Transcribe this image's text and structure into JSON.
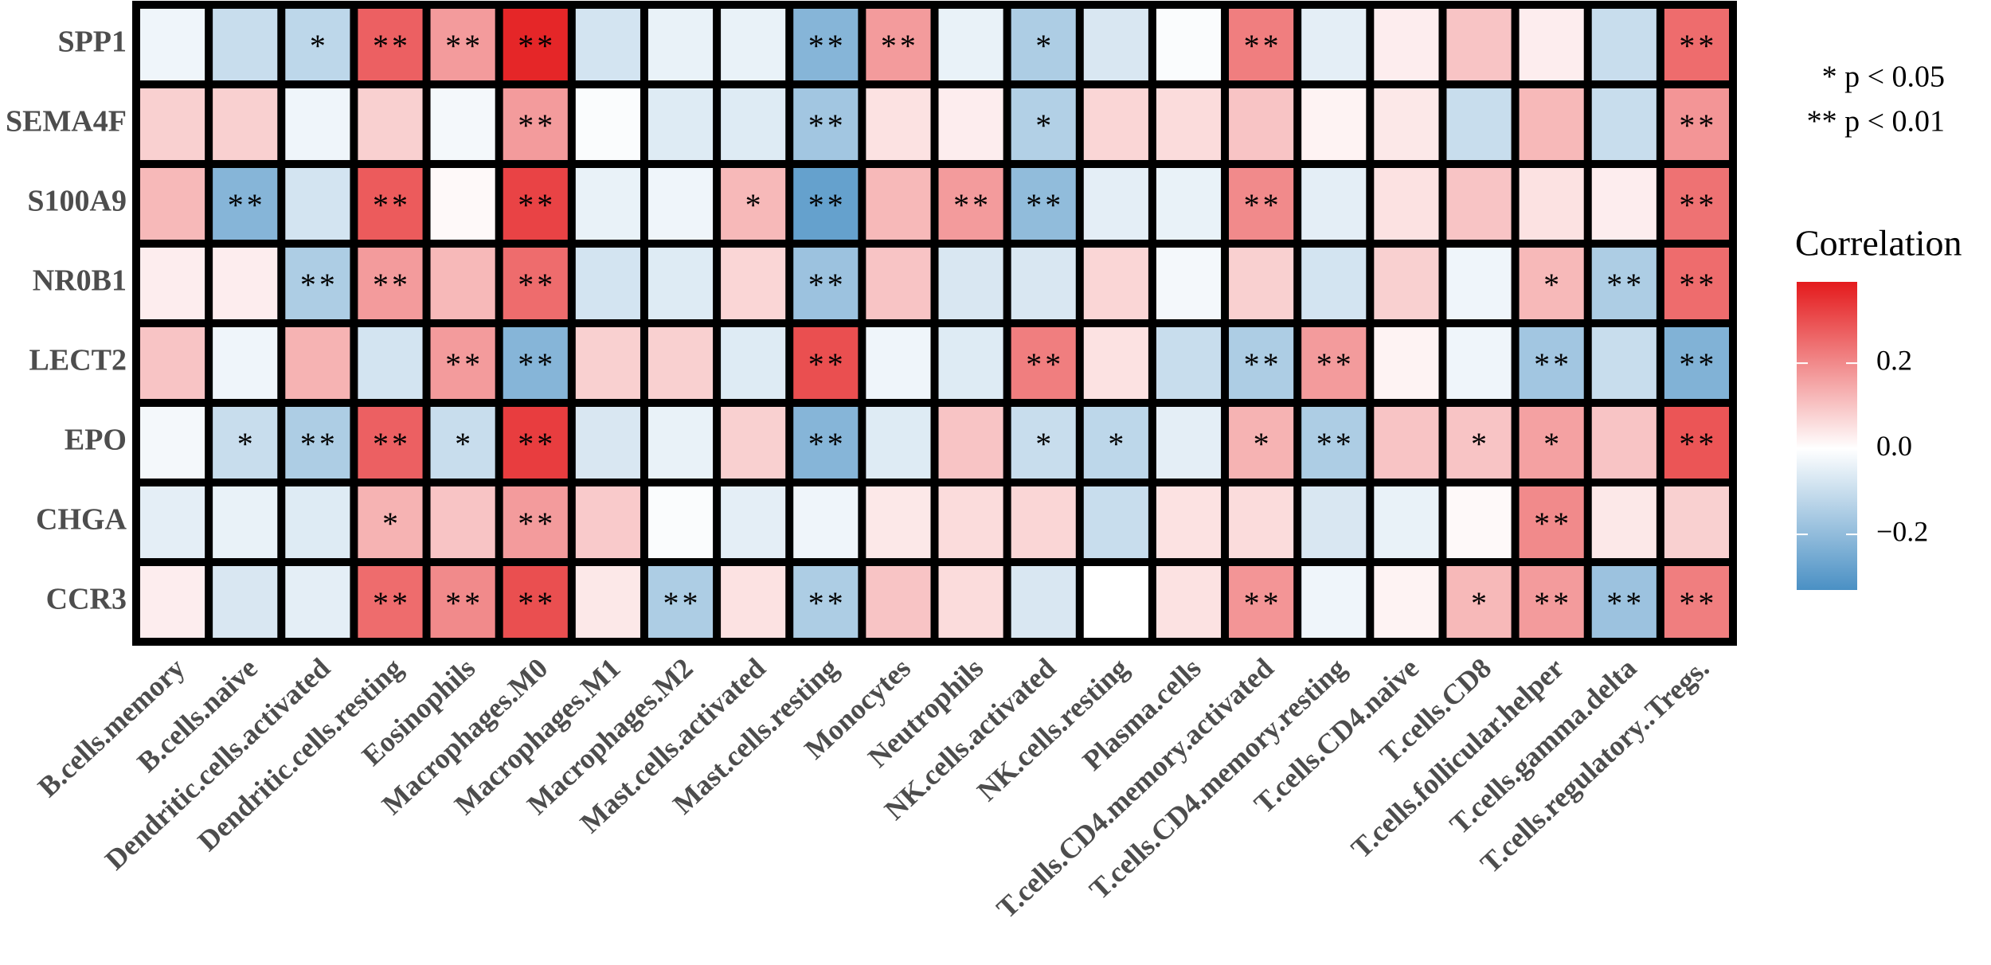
{
  "chart_data": {
    "type": "heatmap",
    "rows": [
      "SPP1",
      "SEMA4F",
      "S100A9",
      "NR0B1",
      "LECT2",
      "EPO",
      "CHGA",
      "CCR3"
    ],
    "columns": [
      "B.cells.memory",
      "B.cells.naive",
      "Dendritic.cells.activated",
      "Dendritic.cells.resting",
      "Eosinophils",
      "Macrophages.M0",
      "Macrophages.M1",
      "Macrophages.M2",
      "Mast.cells.activated",
      "Mast.cells.resting",
      "Monocytes",
      "Neutrophils",
      "NK.cells.activated",
      "NK.cells.resting",
      "Plasma.cells",
      "T.cells.CD4.memory.activated",
      "T.cells.CD4.memory.resting",
      "T.cells.CD4.naive",
      "T.cells.CD8",
      "T.cells.follicular.helper",
      "T.cells.gamma.delta",
      "T.cells.regulatory..Tregs."
    ],
    "values": [
      [
        -0.03,
        -0.1,
        -0.12,
        0.27,
        0.17,
        0.37,
        -0.08,
        -0.04,
        -0.04,
        -0.22,
        0.17,
        -0.04,
        -0.15,
        -0.07,
        -0.01,
        0.22,
        -0.05,
        0.03,
        0.1,
        0.03,
        -0.1,
        0.25
      ],
      [
        0.08,
        0.08,
        -0.03,
        0.08,
        -0.02,
        0.17,
        -0.01,
        -0.06,
        -0.06,
        -0.17,
        0.05,
        0.03,
        -0.14,
        0.07,
        0.06,
        0.1,
        0.02,
        0.04,
        -0.1,
        0.12,
        -0.1,
        0.18
      ],
      [
        0.12,
        -0.22,
        -0.08,
        0.28,
        0.01,
        0.32,
        -0.04,
        -0.03,
        0.12,
        -0.28,
        0.12,
        0.17,
        -0.2,
        -0.05,
        -0.04,
        0.2,
        -0.05,
        0.05,
        0.1,
        0.05,
        0.03,
        0.24
      ],
      [
        0.03,
        0.03,
        -0.15,
        0.17,
        0.12,
        0.25,
        -0.08,
        -0.06,
        0.07,
        -0.18,
        0.1,
        -0.07,
        -0.07,
        0.07,
        -0.02,
        0.08,
        -0.08,
        0.08,
        -0.03,
        0.12,
        -0.15,
        0.25
      ],
      [
        0.1,
        -0.03,
        0.13,
        -0.08,
        0.17,
        -0.22,
        0.08,
        0.08,
        -0.06,
        0.3,
        -0.03,
        -0.06,
        0.22,
        0.05,
        -0.1,
        -0.15,
        0.17,
        0.02,
        -0.03,
        -0.17,
        -0.1,
        -0.23
      ],
      [
        -0.02,
        -0.1,
        -0.15,
        0.27,
        -0.1,
        0.33,
        -0.07,
        -0.04,
        0.08,
        -0.22,
        -0.06,
        0.1,
        -0.1,
        -0.12,
        -0.05,
        0.13,
        -0.15,
        0.1,
        0.1,
        0.16,
        0.1,
        0.29
      ],
      [
        -0.05,
        -0.04,
        -0.06,
        0.13,
        0.1,
        0.17,
        0.09,
        -0.01,
        -0.05,
        -0.03,
        0.04,
        0.06,
        0.07,
        -0.1,
        0.05,
        0.06,
        -0.07,
        -0.04,
        0.01,
        0.2,
        0.04,
        0.08
      ],
      [
        0.03,
        -0.07,
        -0.05,
        0.25,
        0.2,
        0.3,
        0.04,
        -0.15,
        0.05,
        -0.15,
        0.1,
        0.06,
        -0.07,
        0.0,
        0.05,
        0.18,
        -0.03,
        0.02,
        0.12,
        0.17,
        -0.18,
        0.22
      ]
    ],
    "annotations": [
      [
        null,
        null,
        "*",
        "**",
        "**",
        "**",
        null,
        null,
        null,
        "**",
        "**",
        null,
        "*",
        null,
        null,
        "**",
        null,
        null,
        null,
        null,
        null,
        "**"
      ],
      [
        null,
        null,
        null,
        null,
        null,
        "**",
        null,
        null,
        null,
        "**",
        null,
        null,
        "*",
        null,
        null,
        null,
        null,
        null,
        null,
        null,
        null,
        "**"
      ],
      [
        null,
        "**",
        null,
        "**",
        null,
        "**",
        null,
        null,
        "*",
        "**",
        null,
        "**",
        "**",
        null,
        null,
        "**",
        null,
        null,
        null,
        null,
        null,
        "**"
      ],
      [
        null,
        null,
        "**",
        "**",
        null,
        "**",
        null,
        null,
        null,
        "**",
        null,
        null,
        null,
        null,
        null,
        null,
        null,
        null,
        null,
        "*",
        "**",
        "**"
      ],
      [
        null,
        null,
        null,
        null,
        "**",
        "**",
        null,
        null,
        null,
        "**",
        null,
        null,
        "**",
        null,
        null,
        "**",
        "**",
        null,
        null,
        "**",
        null,
        "**"
      ],
      [
        null,
        "*",
        "**",
        "**",
        "*",
        "**",
        null,
        null,
        null,
        "**",
        null,
        null,
        "*",
        "*",
        null,
        "*",
        "**",
        null,
        "*",
        "*",
        null,
        "**"
      ],
      [
        null,
        null,
        null,
        "*",
        null,
        "**",
        null,
        null,
        null,
        null,
        null,
        null,
        null,
        null,
        null,
        null,
        null,
        null,
        null,
        "**",
        null,
        null
      ],
      [
        null,
        null,
        null,
        "**",
        "**",
        "**",
        null,
        "**",
        null,
        "**",
        null,
        null,
        null,
        null,
        null,
        "**",
        null,
        null,
        "*",
        "**",
        "**",
        "**"
      ]
    ],
    "legend_notes": [
      "* p < 0.05",
      "** p < 0.01"
    ],
    "colorbar_title": "Correlation",
    "clim": [
      -0.33,
      0.39
    ],
    "cticks": [
      {
        "value": -0.2,
        "label": "−0.2"
      },
      {
        "value": 0,
        "label": "0.0"
      },
      0.2
    ],
    "colors": {
      "low": "#4a90c4",
      "mid": "#ffffff",
      "high": "#e41a1c"
    }
  }
}
